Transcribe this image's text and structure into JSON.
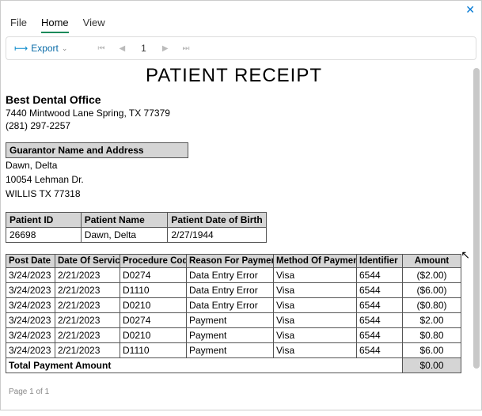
{
  "window": {
    "menu": {
      "file": "File",
      "home": "Home",
      "view": "View"
    },
    "toolbar": {
      "export": "Export",
      "page": "1"
    },
    "footer": "Page 1 of 1"
  },
  "receipt": {
    "title": "PATIENT RECEIPT",
    "office": {
      "name": "Best Dental Office",
      "address": "7440 Mintwood Lane  Spring,  TX  77379",
      "phone": "(281) 297-2257"
    },
    "guarantor": {
      "header": "Guarantor Name and Address",
      "name": "Dawn, Delta",
      "street": "10054 Lehman Dr.",
      "city": "WILLIS TX 77318"
    },
    "patient": {
      "headers": {
        "id": "Patient ID",
        "name": "Patient Name",
        "dob": "Patient Date of Birth"
      },
      "id": "26698",
      "name": "Dawn, Delta",
      "dob": "2/27/1944"
    },
    "payments": {
      "headers": {
        "post_date": "Post Date",
        "dos": "Date Of Service",
        "proc": "Procedure Code",
        "reason": "Reason For Payment",
        "method": "Method Of Payment",
        "identifier": "Identifier",
        "amount": "Amount"
      },
      "rows": [
        {
          "post_date": "3/24/2023",
          "dos": "2/21/2023",
          "proc": "D0274",
          "reason": "Data Entry Error",
          "method": "Visa",
          "identifier": "6544",
          "amount": "($2.00)"
        },
        {
          "post_date": "3/24/2023",
          "dos": "2/21/2023",
          "proc": "D1110",
          "reason": "Data Entry Error",
          "method": "Visa",
          "identifier": "6544",
          "amount": "($6.00)"
        },
        {
          "post_date": "3/24/2023",
          "dos": "2/21/2023",
          "proc": "D0210",
          "reason": "Data Entry Error",
          "method": "Visa",
          "identifier": "6544",
          "amount": "($0.80)"
        },
        {
          "post_date": "3/24/2023",
          "dos": "2/21/2023",
          "proc": "D0274",
          "reason": "Payment",
          "method": "Visa",
          "identifier": "6544",
          "amount": "$2.00"
        },
        {
          "post_date": "3/24/2023",
          "dos": "2/21/2023",
          "proc": "D0210",
          "reason": "Payment",
          "method": "Visa",
          "identifier": "6544",
          "amount": "$0.80"
        },
        {
          "post_date": "3/24/2023",
          "dos": "2/21/2023",
          "proc": "D1110",
          "reason": "Payment",
          "method": "Visa",
          "identifier": "6544",
          "amount": "$6.00"
        }
      ],
      "total_label": "Total Payment Amount",
      "total_value": "$0.00"
    }
  }
}
